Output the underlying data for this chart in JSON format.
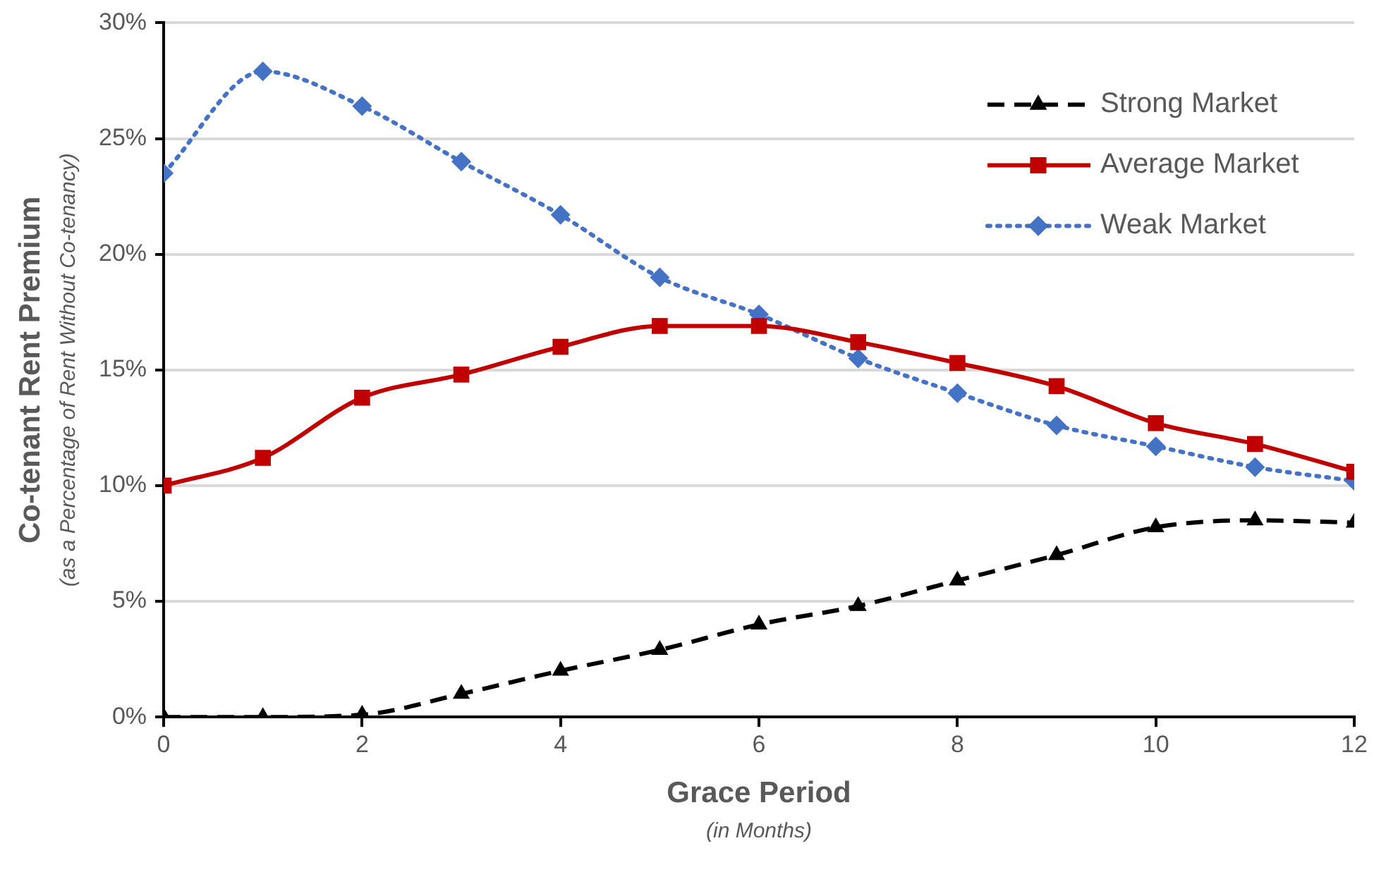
{
  "chart_data": {
    "type": "line",
    "xlabel": "Grace Period\n(in Months)",
    "ylabel": "Co-tenant Rent Premium\n(as a Percentage of Rent Without Co-tenancy)",
    "x": [
      0,
      1,
      2,
      3,
      4,
      5,
      6,
      7,
      8,
      9,
      10,
      11,
      12
    ],
    "series": [
      {
        "name": "Strong Market",
        "color": "#000000",
        "line_style": "dashed",
        "marker": "triangle",
        "values": [
          0,
          0,
          0.1,
          1.0,
          2.0,
          2.9,
          4.0,
          4.8,
          5.9,
          7.0,
          8.2,
          8.5,
          8.4
        ]
      },
      {
        "name": "Average Market",
        "color": "#c00000",
        "line_style": "solid",
        "marker": "square",
        "values": [
          10.0,
          11.2,
          13.8,
          14.8,
          16.0,
          16.9,
          16.9,
          16.2,
          15.3,
          14.3,
          12.7,
          11.8,
          10.6
        ]
      },
      {
        "name": "Weak Market",
        "color": "#4472c4",
        "line_style": "dotted",
        "marker": "diamond",
        "values": [
          23.5,
          27.9,
          26.4,
          24.0,
          21.7,
          19.0,
          17.4,
          15.5,
          14.0,
          12.6,
          11.7,
          10.8,
          10.2
        ]
      }
    ],
    "xlim": [
      0,
      12
    ],
    "xticks": [
      0,
      2,
      4,
      6,
      8,
      10,
      12
    ],
    "ylim": [
      0,
      30
    ],
    "yticks": [
      {
        "value": 0,
        "label": "0%"
      },
      {
        "value": 5,
        "label": "5%"
      },
      {
        "value": 10,
        "label": "10%"
      },
      {
        "value": 15,
        "label": "15%"
      },
      {
        "value": 20,
        "label": "20%"
      },
      {
        "value": 25,
        "label": "25%"
      },
      {
        "value": 30,
        "label": "30%"
      }
    ],
    "grid": "y",
    "legend": "top right"
  }
}
